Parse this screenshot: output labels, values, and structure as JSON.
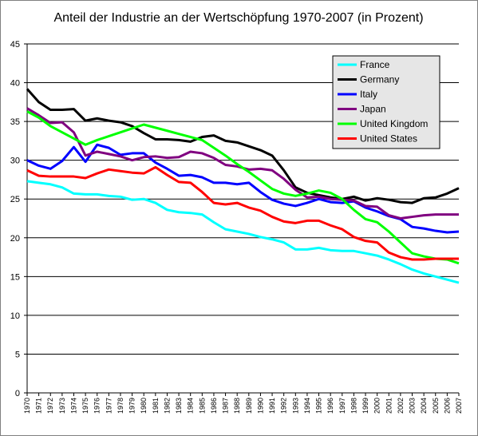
{
  "chart_data": {
    "type": "line",
    "title": "Anteil der Industrie an der Wertschöpfung 1970-2007 (in Prozent)",
    "xlabel": "",
    "ylabel": "",
    "ylim": [
      0,
      45
    ],
    "yticks": [
      "0",
      "5",
      "10",
      "15",
      "20",
      "25",
      "30",
      "35",
      "40",
      "45"
    ],
    "grid": true,
    "legend_position": "top-right",
    "x": [
      "1970",
      "1971",
      "1972",
      "1973",
      "1974",
      "1975",
      "1976",
      "1977",
      "1978",
      "1979",
      "1980",
      "1981",
      "1982",
      "1983",
      "1984",
      "1985",
      "1986",
      "1987",
      "1988",
      "1989",
      "1990",
      "1991",
      "1992",
      "1993",
      "1994",
      "1995",
      "1996",
      "1997",
      "1998",
      "1999",
      "2000",
      "2001",
      "2002",
      "2003",
      "2004",
      "2005",
      "2006",
      "2007"
    ],
    "series": [
      {
        "name": "France",
        "color": "#00ffff",
        "values": [
          27.3,
          27.1,
          26.9,
          26.5,
          25.7,
          25.6,
          25.6,
          25.4,
          25.3,
          24.9,
          25.0,
          24.5,
          23.6,
          23.3,
          23.2,
          23.0,
          22.0,
          21.1,
          20.8,
          20.5,
          20.1,
          19.8,
          19.4,
          18.5,
          18.5,
          18.7,
          18.4,
          18.3,
          18.3,
          18.0,
          17.7,
          17.2,
          16.6,
          15.9,
          15.4,
          15.0,
          14.6,
          14.2
        ]
      },
      {
        "name": "Germany",
        "color": "#000000",
        "values": [
          39.2,
          37.5,
          36.5,
          36.5,
          36.6,
          35.1,
          35.4,
          35.1,
          34.9,
          34.4,
          33.5,
          32.7,
          32.7,
          32.6,
          32.4,
          33.0,
          33.2,
          32.5,
          32.3,
          31.8,
          31.3,
          30.6,
          28.7,
          26.5,
          25.8,
          25.5,
          25.2,
          25.0,
          25.3,
          24.8,
          25.1,
          24.9,
          24.6,
          24.5,
          25.1,
          25.2,
          25.7,
          26.4
        ]
      },
      {
        "name": "Italy",
        "color": "#0000ff",
        "values": [
          30.0,
          29.3,
          28.9,
          29.9,
          31.7,
          29.8,
          32.0,
          31.6,
          30.7,
          30.9,
          30.9,
          29.7,
          28.9,
          28.0,
          28.1,
          27.8,
          27.1,
          27.1,
          26.9,
          27.1,
          25.9,
          24.9,
          24.4,
          24.1,
          24.5,
          25.0,
          24.6,
          24.5,
          24.7,
          23.9,
          23.4,
          22.8,
          22.4,
          21.4,
          21.2,
          20.9,
          20.7,
          20.8
        ]
      },
      {
        "name": "Japan",
        "color": "#800080",
        "values": [
          36.7,
          35.8,
          34.8,
          34.9,
          33.6,
          30.6,
          31.1,
          30.8,
          30.5,
          30.0,
          30.4,
          30.5,
          30.3,
          30.4,
          31.1,
          30.9,
          30.3,
          29.4,
          29.2,
          28.8,
          28.9,
          28.7,
          27.6,
          26.2,
          25.2,
          25.3,
          25.0,
          24.9,
          24.8,
          24.1,
          24.0,
          22.9,
          22.5,
          22.7,
          22.9,
          23.0,
          23.0,
          23.0
        ]
      },
      {
        "name": "United Kingdom",
        "color": "#00ff00",
        "values": [
          36.3,
          35.5,
          34.4,
          33.6,
          32.8,
          32.0,
          32.6,
          33.1,
          33.6,
          34.1,
          34.6,
          34.2,
          33.8,
          33.4,
          33.0,
          32.6,
          31.6,
          30.6,
          29.5,
          28.5,
          27.4,
          26.3,
          25.7,
          25.4,
          25.7,
          26.1,
          25.8,
          25.0,
          23.6,
          22.4,
          22.0,
          20.8,
          19.4,
          18.0,
          17.6,
          17.3,
          17.2,
          16.7
        ]
      },
      {
        "name": "United States",
        "color": "#ff0000",
        "values": [
          28.7,
          28.0,
          27.9,
          27.9,
          27.9,
          27.7,
          28.3,
          28.8,
          28.6,
          28.4,
          28.3,
          29.1,
          28.1,
          27.2,
          27.1,
          25.9,
          24.5,
          24.3,
          24.5,
          23.9,
          23.5,
          22.7,
          22.1,
          21.9,
          22.2,
          22.2,
          21.6,
          21.1,
          20.1,
          19.6,
          19.4,
          18.1,
          17.5,
          17.2,
          17.2,
          17.3,
          17.3,
          17.3
        ]
      }
    ]
  }
}
